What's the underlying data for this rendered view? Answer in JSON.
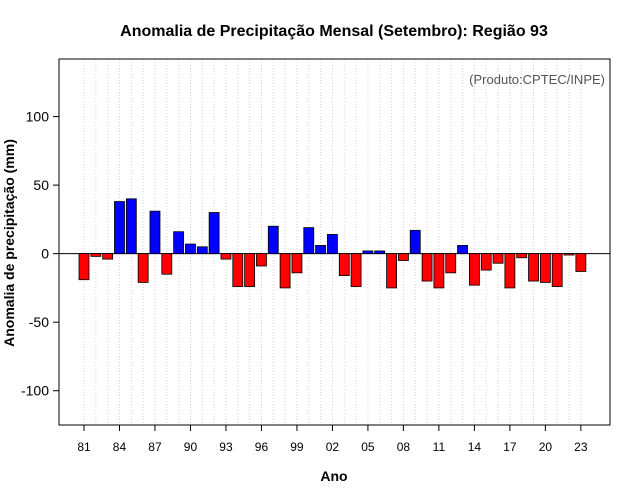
{
  "chart_data": {
    "type": "bar",
    "title": "Anomalia de Precipitação Mensal (Setembro): Região 93",
    "xlabel": "Ano",
    "ylabel": "Anomalia de precipitação (mm)",
    "annotation": "(Produto:CPTEC/INPE)",
    "ylim": [
      -125,
      142
    ],
    "yticks": [
      -100,
      -50,
      0,
      50,
      100
    ],
    "ytick_labels": [
      "-100",
      "-50",
      "0",
      "50",
      "100"
    ],
    "years": [
      1981,
      1982,
      1983,
      1984,
      1985,
      1986,
      1987,
      1988,
      1989,
      1990,
      1991,
      1992,
      1993,
      1994,
      1995,
      1996,
      1997,
      1998,
      1999,
      2000,
      2001,
      2002,
      2003,
      2004,
      2005,
      2006,
      2007,
      2008,
      2009,
      2010,
      2011,
      2012,
      2013,
      2014,
      2015,
      2016,
      2017,
      2018,
      2019,
      2020,
      2021,
      2022,
      2023
    ],
    "values": [
      -19,
      -2,
      -4,
      38,
      40,
      -21,
      31,
      -15,
      16,
      7,
      5,
      30,
      -4,
      -24,
      -24,
      -9,
      20,
      -25,
      -14,
      19,
      6,
      14,
      -16,
      -24,
      2,
      2,
      -25,
      -5,
      17,
      -20,
      -25,
      -14,
      6,
      -23,
      -12,
      -7,
      -25,
      -3,
      -20,
      -21,
      -24,
      -1,
      -13
    ],
    "xtick_years": [
      1981,
      1984,
      1987,
      1990,
      1993,
      1996,
      1999,
      2002,
      2005,
      2008,
      2011,
      2014,
      2017,
      2020,
      2023
    ],
    "xtick_labels": [
      "81",
      "84",
      "87",
      "90",
      "93",
      "96",
      "99",
      "02",
      "05",
      "08",
      "11",
      "14",
      "17",
      "20",
      "23"
    ],
    "grid": true,
    "colors": {
      "positive": "#0000ff",
      "negative": "#ff0000",
      "grid": "#d3d3d3",
      "axis": "#000000"
    }
  }
}
